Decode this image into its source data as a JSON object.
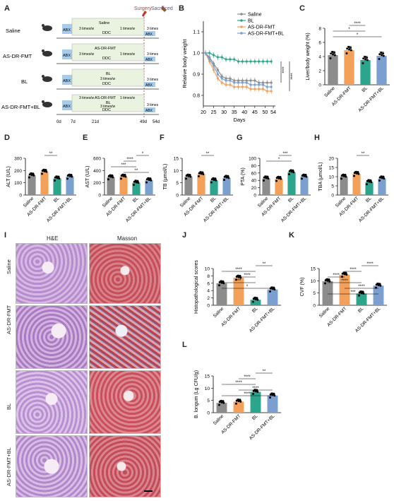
{
  "panel_letters": [
    "A",
    "B",
    "C",
    "D",
    "E",
    "F",
    "G",
    "H",
    "I",
    "J",
    "K",
    "L"
  ],
  "panel_a": {
    "top_labels": {
      "surgery": "Surgery",
      "sacrificed": "Sacrificed"
    },
    "groups": [
      "Saline",
      "AS-DR-FMT",
      "BL",
      "AS-DR-FMT+BL"
    ],
    "abx": "ABX",
    "ddc": "DDC",
    "three_times": "3 times/w",
    "one_time": "1 times/w",
    "three_times_short": "3 times",
    "saline_tag": "Saline",
    "fmt_tag": "AS-DR-FMT",
    "bl_tag": "BL",
    "timeline_days": [
      "0d",
      "7d",
      "21d",
      "49d",
      "54d"
    ]
  },
  "colors": {
    "saline": "#8c8c8c",
    "fmt": "#f2a05a",
    "bl": "#2ca58d",
    "fmtbl": "#7b9fcf",
    "he_bg": "#c9a3d6",
    "masson_bg": "#c9626d"
  },
  "x_categories": [
    "Saline",
    "AS-DR-FMT",
    "BL",
    "AS-DR-FMT+BL"
  ],
  "sig": {
    "one": "*",
    "two": "**",
    "three": "***",
    "four": "****"
  },
  "chart_data": [
    {
      "id": "B",
      "type": "line",
      "xlabel": "Days",
      "ylabel": "Relative body weight",
      "xlim": [
        20,
        55
      ],
      "ylim": [
        0.75,
        1.15
      ],
      "xticks": [
        20,
        25,
        30,
        35,
        40,
        45,
        50,
        54
      ],
      "yticks": [
        0.8,
        0.9,
        1.0,
        1.1
      ],
      "xtick_labels": [
        "20",
        "25",
        "30",
        "35",
        "40",
        "45",
        "50",
        "54"
      ],
      "ytick_labels": [
        "0.8",
        "0.9",
        "1.0",
        "1.1"
      ],
      "x": [
        21,
        23,
        25,
        27,
        29,
        31,
        33,
        35,
        37,
        39,
        41,
        43,
        45,
        47,
        49,
        51,
        53
      ],
      "legend": "top-right",
      "series": [
        {
          "name": "Saline",
          "values": [
            1.0,
            0.98,
            0.95,
            0.92,
            0.89,
            0.88,
            0.88,
            0.87,
            0.87,
            0.87,
            0.87,
            0.87,
            0.87,
            0.86,
            0.86,
            0.86,
            0.86
          ]
        },
        {
          "name": "BL",
          "values": [
            1.0,
            1.0,
            0.99,
            0.98,
            0.98,
            0.97,
            0.97,
            0.97,
            0.96,
            0.96,
            0.96,
            0.96,
            0.96,
            0.96,
            0.96,
            0.96,
            0.96
          ]
        },
        {
          "name": "AS-DR-FMT",
          "values": [
            1.0,
            0.96,
            0.92,
            0.88,
            0.86,
            0.85,
            0.85,
            0.84,
            0.84,
            0.84,
            0.84,
            0.83,
            0.83,
            0.83,
            0.83,
            0.82,
            0.82
          ]
        },
        {
          "name": "AS-DR-FMT+BL",
          "values": [
            1.0,
            0.97,
            0.94,
            0.9,
            0.88,
            0.87,
            0.87,
            0.86,
            0.86,
            0.86,
            0.86,
            0.85,
            0.85,
            0.85,
            0.85,
            0.84,
            0.84
          ]
        }
      ],
      "significance": [
        "****",
        "****"
      ]
    },
    {
      "id": "C",
      "type": "bar",
      "ylabel": "Liver/body weight (%)",
      "ylim": [
        0,
        8
      ],
      "yticks": [
        0,
        2,
        4,
        6,
        8
      ],
      "ytick_labels": [
        "0",
        "2",
        "4",
        "6",
        "8"
      ],
      "values": [
        4.2,
        4.9,
        3.5,
        4.1
      ],
      "sig_pairs": [
        {
          "from": 0,
          "to": 3,
          "label": "*"
        },
        {
          "from": 0,
          "to": 2,
          "label": "*"
        },
        {
          "from": 1,
          "to": 2,
          "label": "****"
        }
      ]
    },
    {
      "id": "D",
      "type": "bar",
      "ylabel": "ALT (U/L)",
      "ylim": [
        0,
        300
      ],
      "yticks": [
        0,
        100,
        200,
        300
      ],
      "ytick_labels": [
        "0",
        "100",
        "200",
        "300"
      ],
      "values": [
        160,
        190,
        135,
        150
      ],
      "sig_pairs": [
        {
          "from": 1,
          "to": 2,
          "label": "**"
        }
      ]
    },
    {
      "id": "E",
      "type": "bar",
      "ylabel": "AST (U/L)",
      "ylim": [
        0,
        600
      ],
      "yticks": [
        0,
        200,
        400,
        600
      ],
      "ytick_labels": [
        "0",
        "200",
        "400",
        "600"
      ],
      "values": [
        290,
        300,
        200,
        240
      ],
      "sig_pairs": [
        {
          "from": 1,
          "to": 3,
          "label": "**"
        },
        {
          "from": 0,
          "to": 2,
          "label": "***"
        },
        {
          "from": 1,
          "to": 2,
          "label": "****"
        },
        {
          "from": 2,
          "to": 3,
          "label": "*"
        }
      ]
    },
    {
      "id": "F",
      "type": "bar",
      "ylabel": "TB (μmol/L)",
      "ylim": [
        0,
        15
      ],
      "yticks": [
        0,
        5,
        10,
        15
      ],
      "ytick_labels": [
        "0",
        "5",
        "10",
        "15"
      ],
      "values": [
        7.5,
        8.5,
        6.0,
        7.0
      ],
      "sig_pairs": [
        {
          "from": 1,
          "to": 2,
          "label": "**"
        }
      ]
    },
    {
      "id": "G",
      "type": "bar",
      "ylabel": "PTA (%)",
      "ylim": [
        0,
        100
      ],
      "yticks": [
        0,
        20,
        40,
        60,
        80,
        100
      ],
      "ytick_labels": [
        "0",
        "20",
        "40",
        "60",
        "80",
        "100"
      ],
      "values": [
        45,
        44,
        62,
        50
      ],
      "sig_pairs": [
        {
          "from": 0,
          "to": 2,
          "label": "*"
        },
        {
          "from": 1,
          "to": 2,
          "label": "***"
        }
      ]
    },
    {
      "id": "H",
      "type": "bar",
      "ylabel": "TBA (μmol/L)",
      "ylim": [
        0,
        20
      ],
      "yticks": [
        0,
        5,
        10,
        15,
        20
      ],
      "ytick_labels": [
        "0",
        "5",
        "10",
        "15",
        "20"
      ],
      "values": [
        10,
        11.5,
        7,
        9
      ],
      "sig_pairs": [
        {
          "from": 1,
          "to": 2,
          "label": "**"
        }
      ]
    },
    {
      "id": "J",
      "type": "bar",
      "ylabel": "Histopathological scores",
      "ylim": [
        0,
        10
      ],
      "yticks": [
        0,
        2,
        4,
        6,
        8,
        10
      ],
      "ytick_labels": [
        "0",
        "2",
        "4",
        "6",
        "8",
        "10"
      ],
      "values": [
        6.0,
        7.5,
        1.5,
        4.3
      ],
      "sig_pairs": [
        {
          "from": 0,
          "to": 3,
          "label": "*"
        },
        {
          "from": 0,
          "to": 2,
          "label": "***"
        },
        {
          "from": 1,
          "to": 2,
          "label": "****"
        },
        {
          "from": 0,
          "to": 2,
          "label": "****"
        },
        {
          "from": 2,
          "to": 3,
          "label": "**"
        }
      ]
    },
    {
      "id": "K",
      "type": "bar",
      "ylabel": "CVF (%)",
      "ylim": [
        0,
        15
      ],
      "yticks": [
        0,
        5,
        10,
        15
      ],
      "ytick_labels": [
        "0",
        "5",
        "10",
        "15"
      ],
      "values": [
        9.8,
        12.5,
        4.8,
        8.0
      ],
      "sig_pairs": [
        {
          "from": 0,
          "to": 3,
          "label": "***"
        },
        {
          "from": 1,
          "to": 3,
          "label": "****"
        },
        {
          "from": 0,
          "to": 2,
          "label": "****"
        },
        {
          "from": 0,
          "to": 1,
          "label": "****"
        },
        {
          "from": 1,
          "to": 2,
          "label": "****"
        },
        {
          "from": 2,
          "to": 3,
          "label": "****"
        }
      ]
    },
    {
      "id": "L",
      "type": "bar",
      "ylabel": "B. longum (Lg CFU/g)",
      "ylim": [
        0,
        15
      ],
      "yticks": [
        0,
        5,
        10,
        15
      ],
      "ytick_labels": [
        "0",
        "5",
        "10",
        "15"
      ],
      "values": [
        4.0,
        4.5,
        8.5,
        7.0
      ],
      "sig_pairs": [
        {
          "from": 0,
          "to": 3,
          "label": "****"
        },
        {
          "from": 1,
          "to": 3,
          "label": "****"
        },
        {
          "from": 0,
          "to": 2,
          "label": "****"
        },
        {
          "from": 1,
          "to": 2,
          "label": "****"
        },
        {
          "from": 2,
          "to": 3,
          "label": "**"
        }
      ]
    }
  ],
  "panel_i": {
    "col_headers": [
      "H&E",
      "Masson"
    ],
    "row_labels": [
      "Saline",
      "AS-DR-FMT",
      "BL",
      "AS-DR-FMT+BL"
    ]
  }
}
